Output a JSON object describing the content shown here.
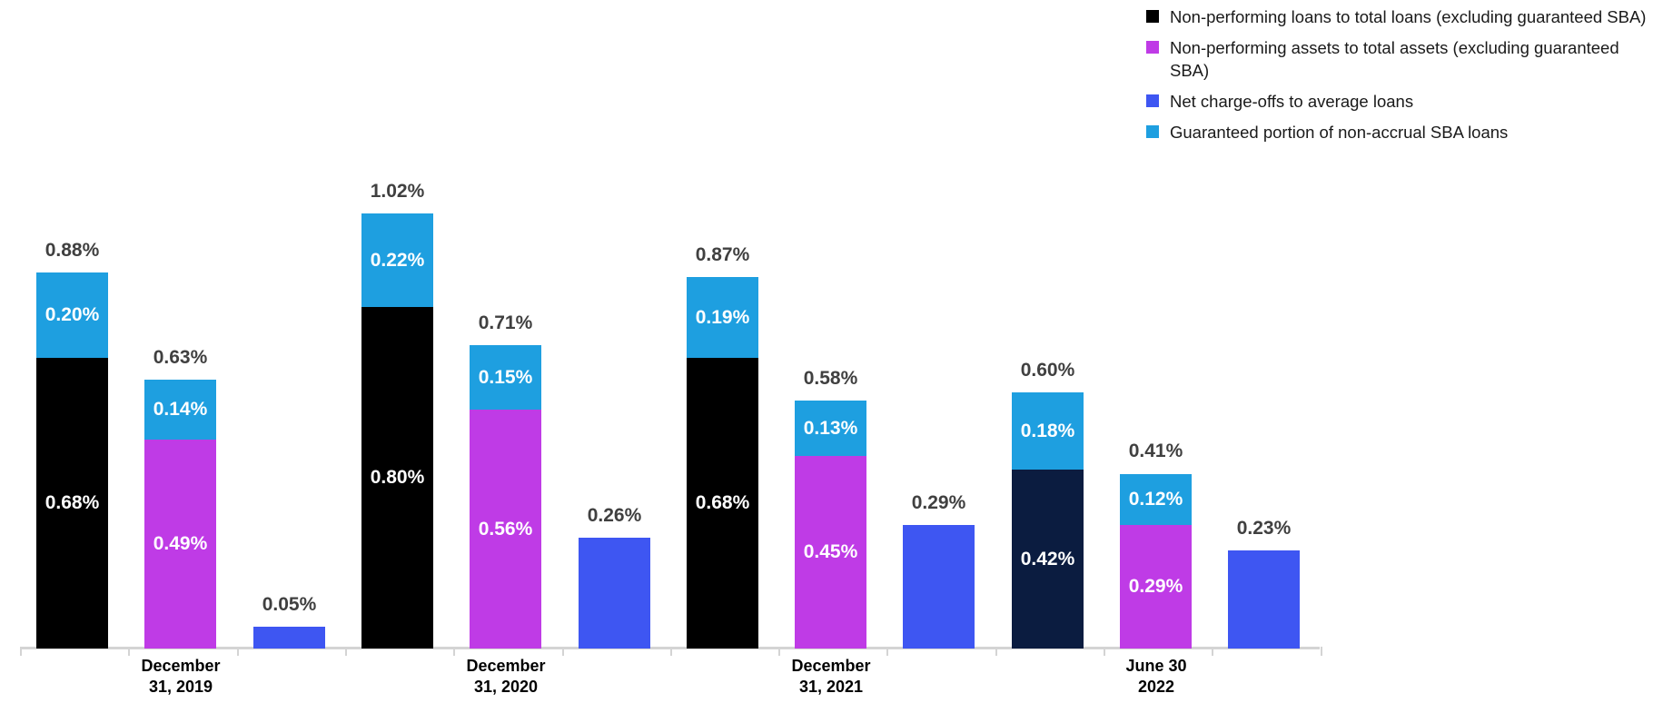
{
  "chart_data": {
    "type": "bar",
    "stacked": true,
    "title": "",
    "unit": "%",
    "ylim": [
      0,
      1.05
    ],
    "grid": false,
    "legend_position": "top-right",
    "palette": {
      "black": "#000000",
      "navy": "#0b1c40",
      "purple": "#bf3be6",
      "blue": "#3e56f2",
      "cyan": "#1e9fe0"
    },
    "series": [
      {
        "name": "Non-performing loans to total loans (excluding guaranteed SBA)",
        "color_key": "black"
      },
      {
        "name": "Non-performing assets to total assets (excluding guaranteed SBA)",
        "color_key": "purple"
      },
      {
        "name": "Net charge-offs to average loans",
        "color_key": "blue"
      },
      {
        "name": "Guaranteed portion of non-accrual SBA loans",
        "color_key": "cyan"
      }
    ],
    "categories": [
      "December 31, 2019",
      "December 31, 2020",
      "December 31, 2021",
      "June 30 2022"
    ],
    "category_labels": [
      {
        "line1": "December",
        "line2": "31, 2019"
      },
      {
        "line1": "December",
        "line2": "31, 2020"
      },
      {
        "line1": "December",
        "line2": "31, 2021"
      },
      {
        "line1": "June 30",
        "line2": "2022"
      }
    ],
    "bars": [
      {
        "category": "December 31, 2019",
        "total": 0.88,
        "total_label": "0.88%",
        "segments": [
          {
            "series": "Non-performing loans to total loans (excluding guaranteed SBA)",
            "value": 0.68,
            "label": "0.68%",
            "color_key": "black"
          },
          {
            "series": "Guaranteed portion of non-accrual SBA loans",
            "value": 0.2,
            "label": "0.20%",
            "color_key": "cyan"
          }
        ]
      },
      {
        "category": "December 31, 2019",
        "total": 0.63,
        "total_label": "0.63%",
        "segments": [
          {
            "series": "Non-performing assets to total assets (excluding guaranteed SBA)",
            "value": 0.49,
            "label": "0.49%",
            "color_key": "purple"
          },
          {
            "series": "Guaranteed portion of non-accrual SBA loans",
            "value": 0.14,
            "label": "0.14%",
            "color_key": "cyan"
          }
        ]
      },
      {
        "category": "December 31, 2019",
        "total": 0.05,
        "total_label": "0.05%",
        "segments": [
          {
            "series": "Net charge-offs to average loans",
            "value": 0.05,
            "label": "",
            "color_key": "blue"
          }
        ]
      },
      {
        "category": "December 31, 2020",
        "total": 1.02,
        "total_label": "1.02%",
        "segments": [
          {
            "series": "Non-performing loans to total loans (excluding guaranteed SBA)",
            "value": 0.8,
            "label": "0.80%",
            "color_key": "black"
          },
          {
            "series": "Guaranteed portion of non-accrual SBA loans",
            "value": 0.22,
            "label": "0.22%",
            "color_key": "cyan"
          }
        ]
      },
      {
        "category": "December 31, 2020",
        "total": 0.71,
        "total_label": "0.71%",
        "segments": [
          {
            "series": "Non-performing assets to total assets (excluding guaranteed SBA)",
            "value": 0.56,
            "label": "0.56%",
            "color_key": "purple"
          },
          {
            "series": "Guaranteed portion of non-accrual SBA loans",
            "value": 0.15,
            "label": "0.15%",
            "color_key": "cyan"
          }
        ]
      },
      {
        "category": "December 31, 2020",
        "total": 0.26,
        "total_label": "0.26%",
        "segments": [
          {
            "series": "Net charge-offs to average loans",
            "value": 0.26,
            "label": "",
            "color_key": "blue"
          }
        ]
      },
      {
        "category": "December 31, 2021",
        "total": 0.87,
        "total_label": "0.87%",
        "segments": [
          {
            "series": "Non-performing loans to total loans (excluding guaranteed SBA)",
            "value": 0.68,
            "label": "0.68%",
            "color_key": "black"
          },
          {
            "series": "Guaranteed portion of non-accrual SBA loans",
            "value": 0.19,
            "label": "0.19%",
            "color_key": "cyan"
          }
        ]
      },
      {
        "category": "December 31, 2021",
        "total": 0.58,
        "total_label": "0.58%",
        "segments": [
          {
            "series": "Non-performing assets to total assets (excluding guaranteed SBA)",
            "value": 0.45,
            "label": "0.45%",
            "color_key": "purple"
          },
          {
            "series": "Guaranteed portion of non-accrual SBA loans",
            "value": 0.13,
            "label": "0.13%",
            "color_key": "cyan"
          }
        ]
      },
      {
        "category": "December 31, 2021",
        "total": 0.29,
        "total_label": "0.29%",
        "segments": [
          {
            "series": "Net charge-offs to average loans",
            "value": 0.29,
            "label": "",
            "color_key": "blue"
          }
        ]
      },
      {
        "category": "June 30 2022",
        "total": 0.6,
        "total_label": "0.60%",
        "segments": [
          {
            "series": "Non-performing loans to total loans (excluding guaranteed SBA)",
            "value": 0.42,
            "label": "0.42%",
            "color_key": "navy"
          },
          {
            "series": "Guaranteed portion of non-accrual SBA loans",
            "value": 0.18,
            "label": "0.18%",
            "color_key": "cyan"
          }
        ]
      },
      {
        "category": "June 30 2022",
        "total": 0.41,
        "total_label": "0.41%",
        "segments": [
          {
            "series": "Non-performing assets to total assets (excluding guaranteed SBA)",
            "value": 0.29,
            "label": "0.29%",
            "color_key": "purple"
          },
          {
            "series": "Guaranteed portion of non-accrual SBA loans",
            "value": 0.12,
            "label": "0.12%",
            "color_key": "cyan"
          }
        ]
      },
      {
        "category": "June 30 2022",
        "total": 0.23,
        "total_label": "0.23%",
        "segments": [
          {
            "series": "Net charge-offs to average loans",
            "value": 0.23,
            "label": "",
            "color_key": "blue"
          }
        ]
      }
    ]
  },
  "legend": {
    "items": [
      {
        "label": "Non-performing loans to total loans (excluding guaranteed SBA)",
        "color": "#000000"
      },
      {
        "label": "Non-performing assets to total assets (excluding guaranteed SBA)",
        "color": "#bf3be6"
      },
      {
        "label": "Net charge-offs to average loans",
        "color": "#3e56f2"
      },
      {
        "label": "Guaranteed portion of non-accrual SBA loans",
        "color": "#1e9fe0"
      }
    ]
  }
}
